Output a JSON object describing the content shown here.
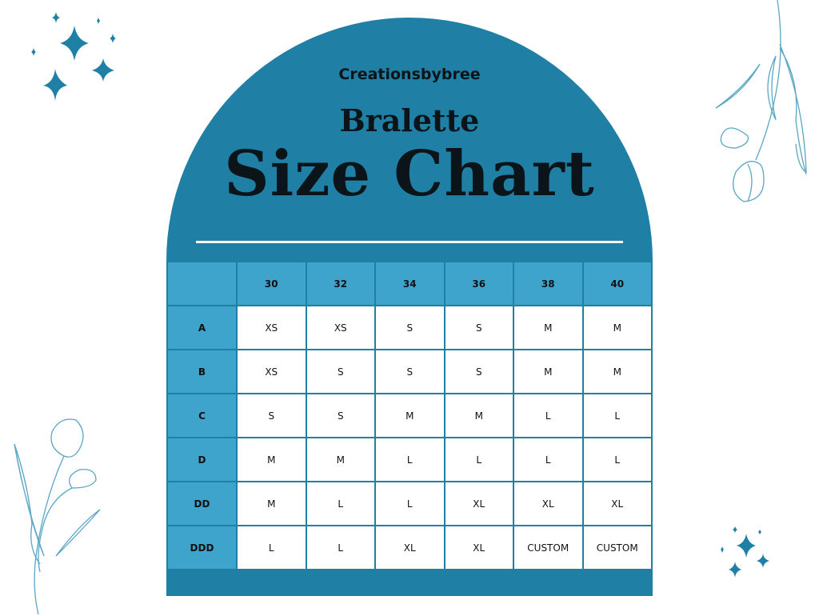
{
  "brand": "Creationsbybree",
  "subtitle": "Bralette",
  "title": "Size Chart",
  "colors": {
    "primary": "#1f7fa5",
    "header_cell": "#3fa4cc",
    "flower_line": "#5aa6c4"
  },
  "table": {
    "columns": [
      "",
      "30",
      "32",
      "34",
      "36",
      "38",
      "40"
    ],
    "rows": [
      {
        "cup": "A",
        "sizes": [
          "XS",
          "XS",
          "S",
          "S",
          "M",
          "M"
        ]
      },
      {
        "cup": "B",
        "sizes": [
          "XS",
          "S",
          "S",
          "S",
          "M",
          "M"
        ]
      },
      {
        "cup": "C",
        "sizes": [
          "S",
          "S",
          "M",
          "M",
          "L",
          "L"
        ]
      },
      {
        "cup": "D",
        "sizes": [
          "M",
          "M",
          "L",
          "L",
          "L",
          "L"
        ]
      },
      {
        "cup": "DD",
        "sizes": [
          "M",
          "L",
          "L",
          "XL",
          "XL",
          "XL"
        ]
      },
      {
        "cup": "DDD",
        "sizes": [
          "L",
          "L",
          "XL",
          "XL",
          "CUSTOM",
          "CUSTOM"
        ]
      }
    ]
  },
  "decorations": [
    "sparkles-icon",
    "tulip-icon"
  ]
}
